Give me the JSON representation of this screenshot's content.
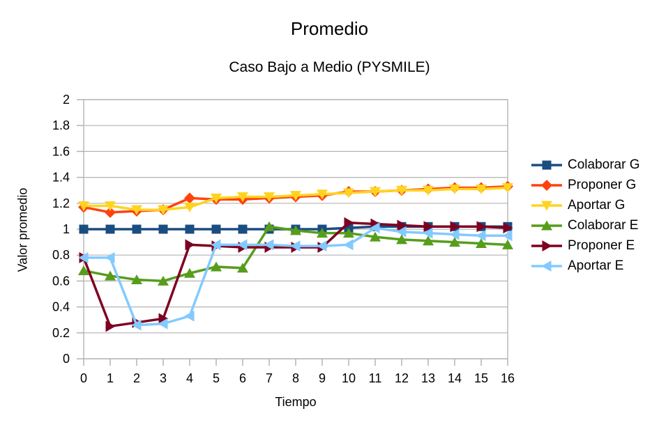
{
  "page": {
    "background": "#ffffff",
    "axis_color": "#b3b3b3",
    "text_color": "#000000"
  },
  "chart_data": {
    "type": "line",
    "title": "Promedio",
    "subtitle": "Caso Bajo a Medio (PYSMILE)",
    "xlabel": "Tiempo",
    "ylabel": "Valor promedio",
    "x": [
      0,
      1,
      2,
      3,
      4,
      5,
      6,
      7,
      8,
      9,
      10,
      11,
      12,
      13,
      14,
      15,
      16
    ],
    "xlim": [
      0,
      16
    ],
    "ylim": [
      0,
      2
    ],
    "yticks": [
      0,
      0.2,
      0.4,
      0.6,
      0.8,
      1,
      1.2,
      1.4,
      1.6,
      1.8,
      2
    ],
    "grid": "horizontal",
    "legend_position": "right",
    "series": [
      {
        "name": "Colaborar G",
        "color": "#1A4D80",
        "marker": "square",
        "values": [
          1.0,
          1.0,
          1.0,
          1.0,
          1.0,
          1.0,
          1.0,
          1.0,
          1.0,
          1.0,
          1.01,
          1.02,
          1.02,
          1.02,
          1.02,
          1.02,
          1.02
        ]
      },
      {
        "name": "Proponer G",
        "color": "#FF420E",
        "marker": "diamond",
        "values": [
          1.17,
          1.13,
          1.14,
          1.15,
          1.24,
          1.23,
          1.23,
          1.24,
          1.25,
          1.26,
          1.29,
          1.29,
          1.3,
          1.31,
          1.32,
          1.32,
          1.33
        ]
      },
      {
        "name": "Aportar G",
        "color": "#FFD320",
        "marker": "triangle-down",
        "values": [
          1.18,
          1.18,
          1.15,
          1.15,
          1.17,
          1.24,
          1.25,
          1.25,
          1.26,
          1.27,
          1.28,
          1.29,
          1.3,
          1.3,
          1.31,
          1.31,
          1.32
        ]
      },
      {
        "name": "Colaborar E",
        "color": "#579D1C",
        "marker": "triangle-up",
        "values": [
          0.68,
          0.64,
          0.61,
          0.6,
          0.66,
          0.71,
          0.7,
          1.02,
          0.99,
          0.97,
          0.97,
          0.94,
          0.92,
          0.91,
          0.9,
          0.89,
          0.88
        ]
      },
      {
        "name": "Proponer E",
        "color": "#7E0021",
        "marker": "triangle-right",
        "values": [
          0.78,
          0.25,
          0.28,
          0.31,
          0.88,
          0.87,
          0.86,
          0.86,
          0.86,
          0.86,
          1.05,
          1.04,
          1.03,
          1.02,
          1.02,
          1.02,
          1.01
        ]
      },
      {
        "name": "Aportar E",
        "color": "#83CAFF",
        "marker": "triangle-left",
        "values": [
          0.78,
          0.78,
          0.26,
          0.27,
          0.33,
          0.88,
          0.88,
          0.88,
          0.87,
          0.87,
          0.88,
          1.01,
          0.98,
          0.97,
          0.96,
          0.95,
          0.95
        ]
      }
    ]
  }
}
